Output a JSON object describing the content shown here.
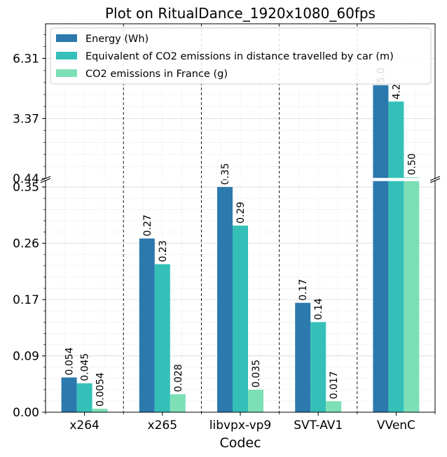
{
  "chart_data": {
    "type": "bar",
    "title": "Plot on RitualDance_1920x1080_60fps",
    "xlabel": "Codec",
    "ylabel": "",
    "categories": [
      "x264",
      "x265",
      "libvpx-vp9",
      "SVT-AV1",
      "VVenC"
    ],
    "series": [
      {
        "name": "Energy (Wh)",
        "color": "#2c79ad",
        "values": [
          0.054,
          0.27,
          0.35,
          0.17,
          5.0
        ],
        "labels": [
          "0.054",
          "0.27",
          "0.35",
          "0.17",
          "5.0"
        ]
      },
      {
        "name": "Equivalent of CO2 emissions in distance travelled by car (m)",
        "color": "#34c0b8",
        "values": [
          0.045,
          0.23,
          0.29,
          0.14,
          4.2
        ],
        "labels": [
          "0.045",
          "0.23",
          "0.29",
          "0.14",
          "4.2"
        ]
      },
      {
        "name": "CO2 emissions in France (g)",
        "color": "#7ddfb6",
        "values": [
          0.0054,
          0.028,
          0.035,
          0.017,
          0.5
        ],
        "labels": [
          "0.0054",
          "0.028",
          "0.035",
          "0.017",
          "0.50"
        ]
      }
    ],
    "broken_axis": {
      "lower": {
        "ylim": [
          0.0,
          0.36
        ],
        "ticks": [
          "0.00",
          "0.09",
          "0.17",
          "0.26",
          "0.35"
        ],
        "tick_values": [
          0.0,
          0.0875,
          0.175,
          0.2625,
          0.35
        ]
      },
      "upper": {
        "ylim": [
          0.44,
          8.0
        ],
        "ticks": [
          "0.44",
          "3.37",
          "6.31"
        ],
        "tick_values": [
          0.44,
          3.37,
          6.31
        ]
      }
    },
    "grid": true,
    "legend_position": "top-left"
  }
}
